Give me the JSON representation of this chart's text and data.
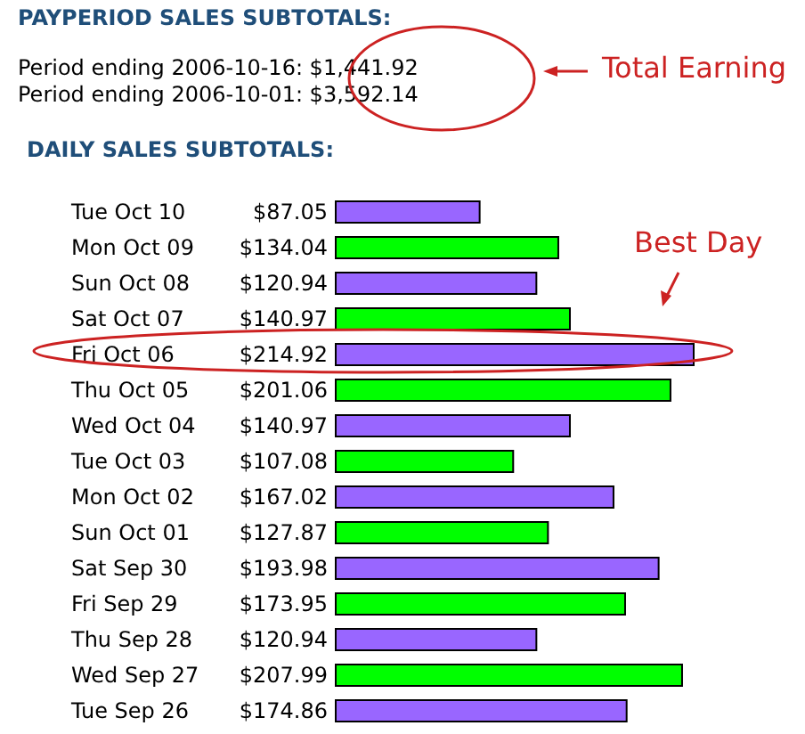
{
  "chart_data": {
    "type": "bar",
    "orientation": "horizontal",
    "title": "DAILY SALES SUBTOTALS:",
    "annotations": [
      "PAYPERIOD SALES SUBTOTALS:",
      "Period ending 2006-10-16: $1,441.92",
      "Period ending 2006-10-01: $3,592.14",
      "Total Earning",
      "Best Day"
    ],
    "categories": [
      "Tue Oct 10",
      "Mon Oct 09",
      "Sun Oct 08",
      "Sat Oct 07",
      "Fri Oct 06",
      "Thu Oct 05",
      "Wed Oct 04",
      "Tue Oct 03",
      "Mon Oct 02",
      "Sun Oct 01",
      "Sat Sep 30",
      "Fri Sep 29",
      "Thu Sep 28",
      "Wed Sep 27",
      "Tue Sep 26"
    ],
    "values": [
      87.05,
      134.04,
      120.94,
      140.97,
      214.92,
      201.06,
      140.97,
      107.08,
      167.02,
      127.87,
      193.98,
      173.95,
      120.94,
      207.99,
      174.86
    ],
    "value_labels": [
      "$87.05",
      "$134.04",
      "$120.94",
      "$140.97",
      "$214.92",
      "$201.06",
      "$140.97",
      "$107.08",
      "$167.02",
      "$127.87",
      "$193.98",
      "$173.95",
      "$120.94",
      "$207.99",
      "$174.86"
    ],
    "colors": [
      "#9966ff",
      "#00ff00",
      "#9966ff",
      "#00ff00",
      "#9966ff",
      "#00ff00",
      "#9966ff",
      "#00ff00",
      "#9966ff",
      "#00ff00",
      "#9966ff",
      "#00ff00",
      "#9966ff",
      "#00ff00",
      "#9966ff"
    ]
  }
}
